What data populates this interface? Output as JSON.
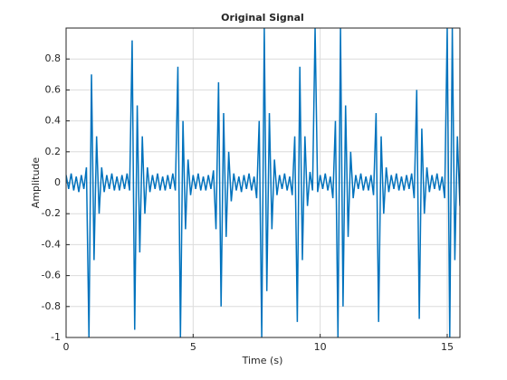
{
  "chart_data": {
    "type": "line",
    "title": "Original Signal",
    "xlabel": "Time (s)",
    "ylabel": "Amplitude",
    "color": "#0072bd",
    "grid": true,
    "xlim": [
      0,
      15.5
    ],
    "ylim": [
      -1,
      1
    ],
    "xticks": [
      0,
      5,
      10,
      15
    ],
    "yticks": [
      -1,
      -0.8,
      -0.6,
      -0.4,
      -0.2,
      0,
      0.2,
      0.4,
      0.6,
      0.8
    ],
    "x": [
      0,
      0.1,
      0.2,
      0.3,
      0.4,
      0.5,
      0.6,
      0.7,
      0.8,
      0.9,
      1,
      1.1,
      1.2,
      1.3,
      1.4,
      1.5,
      1.6,
      1.7,
      1.8,
      1.9,
      2,
      2.1,
      2.2,
      2.3,
      2.4,
      2.5,
      2.6,
      2.7,
      2.8,
      2.9,
      3,
      3.1,
      3.2,
      3.3,
      3.4,
      3.5,
      3.6,
      3.7,
      3.8,
      3.9,
      4,
      4.1,
      4.2,
      4.3,
      4.4,
      4.5,
      4.6,
      4.7,
      4.8,
      4.9,
      5,
      5.1,
      5.2,
      5.3,
      5.4,
      5.5,
      5.6,
      5.7,
      5.8,
      5.9,
      6,
      6.1,
      6.2,
      6.3,
      6.4,
      6.5,
      6.6,
      6.7,
      6.8,
      6.9,
      7,
      7.1,
      7.2,
      7.3,
      7.4,
      7.5,
      7.6,
      7.7,
      7.8,
      7.9,
      8,
      8.1,
      8.2,
      8.3,
      8.4,
      8.5,
      8.6,
      8.7,
      8.8,
      8.9,
      9,
      9.1,
      9.2,
      9.3,
      9.4,
      9.5,
      9.6,
      9.7,
      9.8,
      9.9,
      10,
      10.1,
      10.2,
      10.3,
      10.4,
      10.5,
      10.6,
      10.7,
      10.8,
      10.9,
      11,
      11.1,
      11.2,
      11.3,
      11.4,
      11.5,
      11.6,
      11.7,
      11.8,
      11.9,
      12,
      12.1,
      12.2,
      12.3,
      12.4,
      12.5,
      12.6,
      12.7,
      12.8,
      12.9,
      13,
      13.1,
      13.2,
      13.3,
      13.4,
      13.5,
      13.6,
      13.7,
      13.8,
      13.9,
      14,
      14.1,
      14.2,
      14.3,
      14.4,
      14.5,
      14.6,
      14.7,
      14.8,
      14.9,
      15,
      15.1,
      15.2,
      15.3,
      15.4,
      15.5
    ],
    "values": [
      0.05,
      -0.04,
      0.06,
      -0.05,
      0.04,
      -0.06,
      0.05,
      -0.04,
      0.1,
      -1,
      0.7,
      -0.5,
      0.3,
      -0.2,
      0.1,
      -0.06,
      0.05,
      -0.04,
      0.06,
      -0.05,
      0.04,
      -0.05,
      0.05,
      -0.04,
      0.06,
      -0.05,
      0.92,
      -0.95,
      0.5,
      -0.45,
      0.3,
      -0.2,
      0.1,
      -0.06,
      0.05,
      -0.04,
      0.06,
      -0.05,
      0.04,
      -0.05,
      0.05,
      -0.04,
      0.06,
      -0.05,
      0.75,
      -1,
      0.4,
      -0.3,
      0.15,
      -0.08,
      0.05,
      -0.04,
      0.06,
      -0.05,
      0.04,
      -0.05,
      0.05,
      -0.04,
      0.08,
      -0.3,
      0.65,
      -0.8,
      0.45,
      -0.35,
      0.2,
      -0.12,
      0.06,
      -0.05,
      0.04,
      -0.06,
      0.05,
      -0.04,
      0.06,
      -0.05,
      0.04,
      -0.1,
      0.4,
      -1,
      1,
      -0.7,
      0.45,
      -0.3,
      0.15,
      -0.08,
      0.05,
      -0.04,
      0.06,
      -0.05,
      0.04,
      -0.08,
      0.3,
      -0.9,
      0.75,
      -0.5,
      0.3,
      -0.15,
      0.07,
      -0.05,
      1,
      -0.06,
      0.05,
      -0.04,
      0.06,
      -0.05,
      0.04,
      -0.1,
      0.4,
      -1,
      1,
      -0.8,
      0.5,
      -0.35,
      0.2,
      -0.1,
      0.05,
      -0.04,
      0.06,
      -0.05,
      0.04,
      -0.05,
      0.05,
      -0.08,
      0.45,
      -0.9,
      0.3,
      -0.2,
      0.1,
      -0.06,
      0.05,
      -0.04,
      0.06,
      -0.05,
      0.04,
      -0.05,
      0.05,
      -0.04,
      0.06,
      -0.1,
      0.6,
      -0.88,
      0.35,
      -0.2,
      0.1,
      -0.06,
      0.05,
      -0.04,
      0.06,
      -0.05,
      0.04,
      -0.1,
      1,
      -1,
      1,
      -0.5,
      0.3,
      -0.15
    ]
  }
}
